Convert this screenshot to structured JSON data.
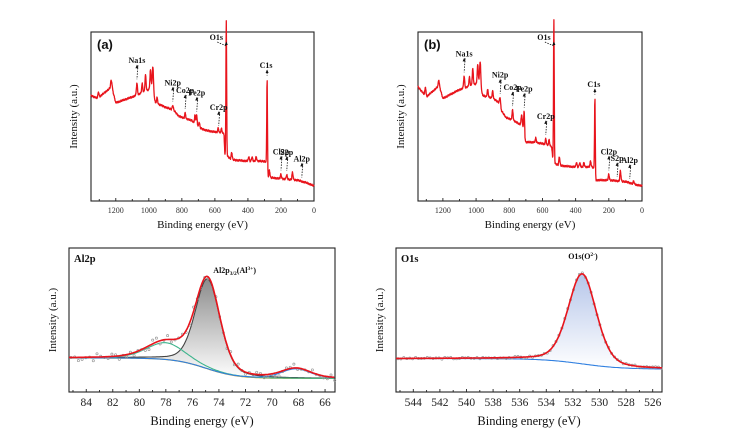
{
  "colors": {
    "spectrum": "#e8141c",
    "frame": "#222222",
    "dots": "#9a9a9a",
    "main_comp": "#444444",
    "main_fill": "#bdbdbd",
    "green_comp": "#3db48c",
    "blue_bg": "#2f7fe0",
    "gold_bg": "#c9a227",
    "o1s_fill": "#c9d6ef"
  },
  "chart_data": [
    {
      "id": "a",
      "type": "line",
      "panel_label": "(a)",
      "title": "",
      "xlabel": "Binding energy (eV)",
      "ylabel": "Intensity (a.u.)",
      "xlim": [
        1350,
        0
      ],
      "xticks": [
        1200,
        1000,
        800,
        600,
        400,
        200,
        0
      ],
      "ylim": [
        0,
        100
      ],
      "yticks_shown": false,
      "grid": false,
      "background": [
        [
          1350,
          62
        ],
        [
          1310,
          60
        ],
        [
          1235,
          67
        ],
        [
          1230,
          71
        ],
        [
          1220,
          66
        ],
        [
          1200,
          57
        ],
        [
          1100,
          61
        ],
        [
          1000,
          66
        ],
        [
          980,
          69
        ],
        [
          960,
          57
        ],
        [
          900,
          54
        ],
        [
          850,
          52
        ],
        [
          820,
          48
        ],
        [
          780,
          46
        ],
        [
          740,
          45
        ],
        [
          700,
          40
        ],
        [
          650,
          38
        ],
        [
          600,
          37
        ],
        [
          545,
          36
        ],
        [
          540,
          22
        ],
        [
          500,
          18
        ],
        [
          400,
          17
        ],
        [
          300,
          17
        ],
        [
          290,
          16
        ],
        [
          285,
          6
        ],
        [
          200,
          5
        ],
        [
          100,
          4
        ],
        [
          40,
          2
        ],
        [
          0,
          0
        ]
      ],
      "peaks": [
        [
          1305,
          4
        ],
        [
          1225,
          3
        ],
        [
          1072,
          8
        ],
        [
          1040,
          6
        ],
        [
          1020,
          11
        ],
        [
          990,
          12
        ],
        [
          975,
          16
        ],
        [
          950,
          4
        ],
        [
          855,
          3
        ],
        [
          780,
          4
        ],
        [
          720,
          6
        ],
        [
          710,
          7
        ],
        [
          695,
          4
        ],
        [
          580,
          3
        ],
        [
          560,
          3
        ],
        [
          531,
          92
        ],
        [
          498,
          5
        ],
        [
          395,
          3
        ],
        [
          375,
          3
        ],
        [
          350,
          3
        ],
        [
          284,
          68
        ],
        [
          270,
          5
        ],
        [
          200,
          3
        ],
        [
          165,
          3
        ],
        [
          130,
          5
        ]
      ],
      "annotations": [
        {
          "text": "O1s",
          "x": 531
        },
        {
          "text": "Na1s",
          "x": 1072
        },
        {
          "text": "Ni2p",
          "x": 855
        },
        {
          "text": "Co2p",
          "x": 780
        },
        {
          "text": "Fe2p",
          "x": 710
        },
        {
          "text": "Cr2p",
          "x": 577
        },
        {
          "text": "C1s",
          "x": 284
        },
        {
          "text": "Cl2p",
          "x": 200
        },
        {
          "text": "S2p",
          "x": 165
        },
        {
          "text": "Al2p",
          "x": 74
        }
      ]
    },
    {
      "id": "b",
      "type": "line",
      "panel_label": "(b)",
      "title": "",
      "xlabel": "Binding energy (eV)",
      "ylabel": "Intensity (a.u.)",
      "xlim": [
        1350,
        0
      ],
      "xticks": [
        1200,
        1000,
        800,
        600,
        400,
        200,
        0
      ],
      "ylim": [
        0,
        100
      ],
      "yticks_shown": false,
      "grid": false,
      "background": [
        [
          1350,
          68
        ],
        [
          1300,
          61
        ],
        [
          1230,
          68
        ],
        [
          1225,
          70
        ],
        [
          1200,
          60
        ],
        [
          1100,
          66
        ],
        [
          1000,
          70
        ],
        [
          980,
          72
        ],
        [
          960,
          62
        ],
        [
          900,
          60
        ],
        [
          860,
          57
        ],
        [
          850,
          52
        ],
        [
          820,
          47
        ],
        [
          780,
          45
        ],
        [
          730,
          42
        ],
        [
          710,
          38
        ],
        [
          705,
          30
        ],
        [
          650,
          30
        ],
        [
          600,
          29
        ],
        [
          545,
          27
        ],
        [
          535,
          16
        ],
        [
          500,
          14
        ],
        [
          400,
          13
        ],
        [
          300,
          13
        ],
        [
          290,
          12
        ],
        [
          285,
          4
        ],
        [
          200,
          4
        ],
        [
          100,
          3
        ],
        [
          40,
          1
        ],
        [
          0,
          0
        ]
      ],
      "peaks": [
        [
          1305,
          6
        ],
        [
          1225,
          3
        ],
        [
          1072,
          8
        ],
        [
          1040,
          6
        ],
        [
          1020,
          11
        ],
        [
          990,
          12
        ],
        [
          975,
          16
        ],
        [
          930,
          5
        ],
        [
          900,
          5
        ],
        [
          855,
          6
        ],
        [
          780,
          7
        ],
        [
          725,
          8
        ],
        [
          710,
          13
        ],
        [
          640,
          3
        ],
        [
          580,
          4
        ],
        [
          560,
          4
        ],
        [
          531,
          98
        ],
        [
          498,
          6
        ],
        [
          395,
          3
        ],
        [
          375,
          3
        ],
        [
          350,
          3
        ],
        [
          310,
          4
        ],
        [
          284,
          57
        ],
        [
          200,
          4
        ],
        [
          130,
          7
        ],
        [
          50,
          2
        ]
      ],
      "annotations": [
        {
          "text": "O1s",
          "x": 531
        },
        {
          "text": "Na1s",
          "x": 1072
        },
        {
          "text": "Ni2p",
          "x": 855
        },
        {
          "text": "Co2p",
          "x": 780
        },
        {
          "text": "Fe2p",
          "x": 710
        },
        {
          "text": "Cr2p",
          "x": 580
        },
        {
          "text": "C1s",
          "x": 284
        },
        {
          "text": "Cl2p",
          "x": 200
        },
        {
          "text": "S2p",
          "x": 150
        },
        {
          "text": "Al2p",
          "x": 74
        }
      ]
    },
    {
      "id": "al2p",
      "type": "line",
      "panel_label": "Al2p",
      "title": "",
      "xlabel": "Binding energy (eV)",
      "ylabel": "Intensity (a.u.)",
      "xlim": [
        85.3,
        65.25
      ],
      "xticks": [
        84,
        82,
        80,
        78,
        76,
        74,
        72,
        70,
        68,
        66
      ],
      "ylim": [
        0,
        100
      ],
      "yticks_shown": false,
      "grid": false,
      "annotation": {
        "text": "Al2p",
        "sub": "3/2",
        "mid": "(Al",
        "sup": "3+",
        "end": ")",
        "x": 74.8
      },
      "components": [
        {
          "name": "Al2p3/2 (Al3+)",
          "center": 74.85,
          "height": 75,
          "fwhm": 2.2,
          "color_key": "main_comp",
          "filled": true
        },
        {
          "name": "satellite",
          "center": 78.0,
          "height": 14,
          "fwhm": 3.4,
          "color_key": "green_comp",
          "filled": false
        },
        {
          "name": "sub-peak",
          "center": 68.2,
          "height": 8,
          "fwhm": 2.6,
          "color_key": "blue_bg",
          "filled": false
        }
      ],
      "baseline": {
        "left": 20,
        "right": 3,
        "step_center": 75.0,
        "step_width": 1.2
      },
      "envelope_color_key": "spectrum",
      "data_points": "scatter of raw data around envelope (grey open circles)"
    },
    {
      "id": "o1s",
      "type": "line",
      "panel_label": "O1s",
      "title": "",
      "xlabel": "Binding energy (eV)",
      "ylabel": "Intensity (a.u.)",
      "xlim": [
        545.3,
        525.3
      ],
      "xticks": [
        544,
        542,
        540,
        538,
        536,
        534,
        532,
        530,
        528,
        526
      ],
      "ylim": [
        0,
        100
      ],
      "yticks_shown": false,
      "grid": false,
      "annotation": {
        "text": "O1s(O",
        "sup": "2-",
        "end": ")",
        "x": 531.3
      },
      "components": [
        {
          "name": "O1s (O2-)",
          "center": 531.3,
          "height": 77,
          "fwhm": 2.5,
          "color_key": "o1s_fill",
          "filled": true
        }
      ],
      "baseline": {
        "left": 20,
        "right": 11,
        "step_center": 531.3,
        "step_width": 1.5
      },
      "envelope_color_key": "spectrum"
    }
  ]
}
